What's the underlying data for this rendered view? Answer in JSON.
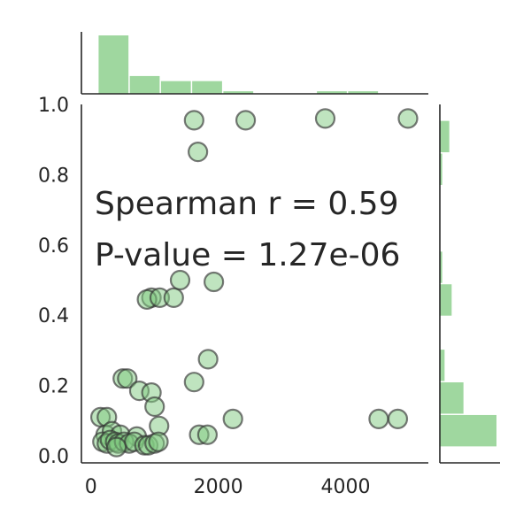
{
  "chart_data": {
    "type": "scatter",
    "title": "",
    "xlabel": "",
    "ylabel": "",
    "xlim": [
      -150,
      5300
    ],
    "ylim": [
      -0.02,
      1.0
    ],
    "x_ticks": [
      {
        "value": 0,
        "label": "0"
      },
      {
        "value": 2000,
        "label": "2000"
      },
      {
        "value": 4000,
        "label": "4000"
      }
    ],
    "y_ticks": [
      {
        "value": 0.0,
        "label": "0.0"
      },
      {
        "value": 0.2,
        "label": "0.2"
      },
      {
        "value": 0.4,
        "label": "0.4"
      },
      {
        "value": 0.6,
        "label": "0.6"
      },
      {
        "value": 0.8,
        "label": "0.8"
      },
      {
        "value": 1.0,
        "label": "1.0"
      }
    ],
    "grid": false,
    "annotations": [
      {
        "text": "Spearman r = 0.59",
        "x": 100,
        "y": 0.72
      },
      {
        "text": "P-value = 1.27e-06",
        "x": 100,
        "y": 0.56
      }
    ],
    "marker_color": "#7fc97f",
    "marker_fill_opacity": 0.5,
    "marker_edge_color": "#333333",
    "points": [
      {
        "x": 1620,
        "y": 0.955
      },
      {
        "x": 2430,
        "y": 0.955
      },
      {
        "x": 3680,
        "y": 0.96
      },
      {
        "x": 4980,
        "y": 0.96
      },
      {
        "x": 1680,
        "y": 0.865
      },
      {
        "x": 1400,
        "y": 0.5
      },
      {
        "x": 1930,
        "y": 0.495
      },
      {
        "x": 950,
        "y": 0.45
      },
      {
        "x": 880,
        "y": 0.445
      },
      {
        "x": 1080,
        "y": 0.45
      },
      {
        "x": 1300,
        "y": 0.45
      },
      {
        "x": 1840,
        "y": 0.275
      },
      {
        "x": 1620,
        "y": 0.21
      },
      {
        "x": 500,
        "y": 0.22
      },
      {
        "x": 570,
        "y": 0.22
      },
      {
        "x": 760,
        "y": 0.185
      },
      {
        "x": 950,
        "y": 0.18
      },
      {
        "x": 1000,
        "y": 0.14
      },
      {
        "x": 150,
        "y": 0.11
      },
      {
        "x": 250,
        "y": 0.11
      },
      {
        "x": 2230,
        "y": 0.105
      },
      {
        "x": 4520,
        "y": 0.105
      },
      {
        "x": 4820,
        "y": 0.105
      },
      {
        "x": 1070,
        "y": 0.085
      },
      {
        "x": 230,
        "y": 0.06
      },
      {
        "x": 330,
        "y": 0.07
      },
      {
        "x": 460,
        "y": 0.06
      },
      {
        "x": 720,
        "y": 0.055
      },
      {
        "x": 1700,
        "y": 0.06
      },
      {
        "x": 1830,
        "y": 0.06
      },
      {
        "x": 180,
        "y": 0.04
      },
      {
        "x": 250,
        "y": 0.035
      },
      {
        "x": 300,
        "y": 0.045
      },
      {
        "x": 380,
        "y": 0.04
      },
      {
        "x": 430,
        "y": 0.035
      },
      {
        "x": 520,
        "y": 0.04
      },
      {
        "x": 600,
        "y": 0.035
      },
      {
        "x": 680,
        "y": 0.04
      },
      {
        "x": 400,
        "y": 0.025
      },
      {
        "x": 840,
        "y": 0.03
      },
      {
        "x": 900,
        "y": 0.03
      },
      {
        "x": 1000,
        "y": 0.035
      },
      {
        "x": 1060,
        "y": 0.04
      }
    ],
    "marginal_x_hist": {
      "bin_edges": [
        120,
        610,
        1100,
        1590,
        2080,
        2570,
        3060,
        3550,
        4040,
        4530,
        5020
      ],
      "counts": [
        23,
        7,
        5,
        5,
        1,
        0,
        0,
        1,
        1,
        0,
        0
      ],
      "orientation": "vertical"
    },
    "marginal_y_hist": {
      "bin_edges": [
        0.025,
        0.118,
        0.211,
        0.304,
        0.397,
        0.49,
        0.583,
        0.676,
        0.769,
        0.862,
        0.955
      ],
      "counts": [
        24,
        10,
        2,
        0,
        5,
        1,
        0,
        0,
        1,
        4
      ],
      "orientation": "horizontal"
    },
    "hist_color": "#7fc97f"
  }
}
